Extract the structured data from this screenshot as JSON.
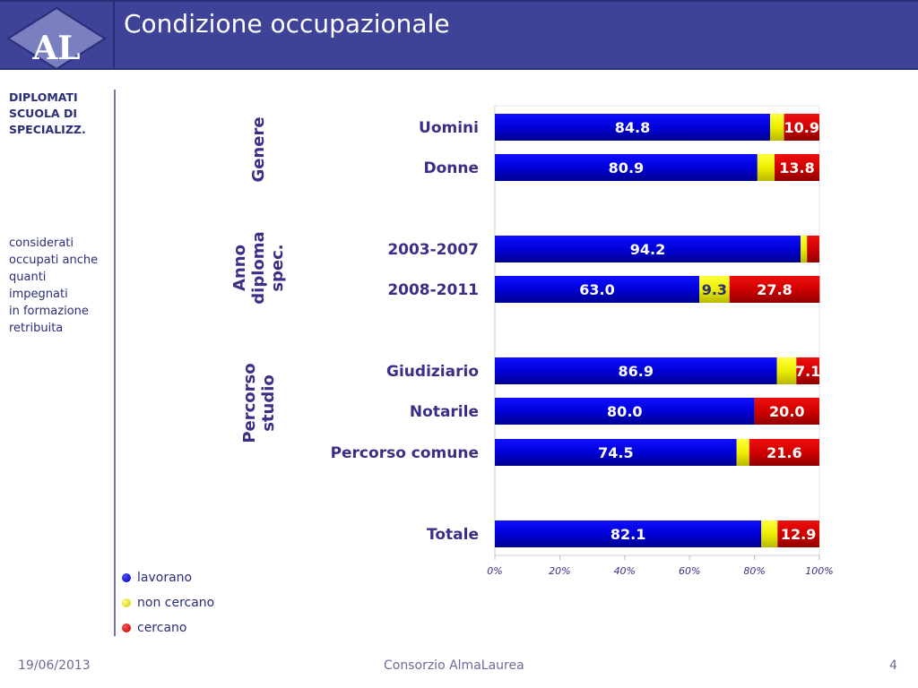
{
  "header": {
    "title": "Condizione occupazionale",
    "logo_text": "AL"
  },
  "side": {
    "title_lines": [
      "DIPLOMATI",
      "SCUOLA DI",
      "SPECIALIZZ."
    ],
    "note_lines": [
      "considerati",
      "occupati anche",
      "quanti",
      "impegnati",
      "in formazione",
      "retribuita"
    ]
  },
  "groups": {
    "genere": [
      "Genere"
    ],
    "anno": [
      "Anno",
      "diploma",
      "spec."
    ],
    "percorso": [
      "Percorso",
      "studio"
    ]
  },
  "legend": [
    {
      "label": "lavorano",
      "color": "#0000cc"
    },
    {
      "label": "non cercano",
      "color": "#e8e800"
    },
    {
      "label": "cercano",
      "color": "#cc0000"
    }
  ],
  "footer": {
    "date": "19/06/2013",
    "center": "Consorzio AlmaLaurea",
    "page": "4"
  },
  "chart_data": {
    "type": "bar",
    "orientation": "horizontal",
    "stacked": true,
    "percent": true,
    "categories": [
      "Uomini",
      "Donne",
      "2003-2007",
      "2008-2011",
      "Giudiziario",
      "Notarile",
      "Percorso comune",
      "Totale"
    ],
    "series": [
      {
        "name": "lavorano",
        "color": "#0000cc",
        "values": [
          84.8,
          80.9,
          94.2,
          63.0,
          86.9,
          80.0,
          74.5,
          82.1
        ]
      },
      {
        "name": "non cercano",
        "color": "#e8e800",
        "values": [
          4.3,
          5.3,
          2.0,
          9.3,
          6.0,
          0.0,
          3.9,
          5.0
        ]
      },
      {
        "name": "cercano",
        "color": "#cc0000",
        "values": [
          10.9,
          13.8,
          3.8,
          27.8,
          7.1,
          20.0,
          21.6,
          12.9
        ]
      }
    ],
    "data_labels": [
      [
        "84.8",
        "",
        "10.9"
      ],
      [
        "80.9",
        "",
        "13.8"
      ],
      [
        "94.2",
        "",
        ""
      ],
      [
        "63.0",
        "9.3",
        "27.8"
      ],
      [
        "86.9",
        "",
        "7.1"
      ],
      [
        "80.0",
        "",
        "20.0"
      ],
      [
        "74.5",
        "",
        "21.6"
      ],
      [
        "82.1",
        "",
        "12.9"
      ]
    ],
    "x_ticks": [
      "0%",
      "20%",
      "40%",
      "60%",
      "80%",
      "100%"
    ],
    "xlim": [
      0,
      100
    ],
    "grid": false
  }
}
